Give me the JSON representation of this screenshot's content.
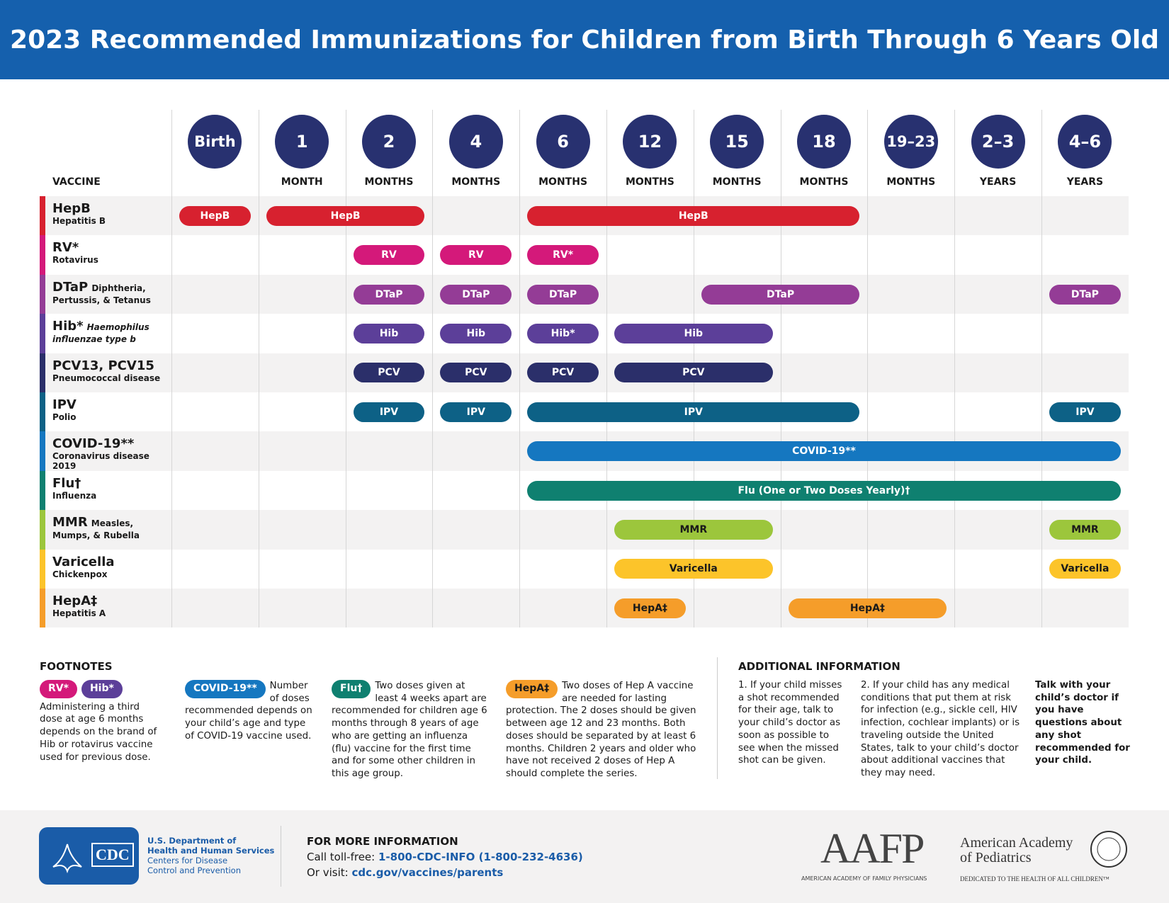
{
  "header": {
    "title": "2023 Recommended Immunizations for Children from Birth Through 6 Years Old"
  },
  "table": {
    "vaccine_heading": "VACCINE",
    "circle_color": "#283170",
    "columns": [
      {
        "age": "Birth"
      },
      {
        "age": "1",
        "unit": "MONTH"
      },
      {
        "age": "2",
        "unit": "MONTHS"
      },
      {
        "age": "4",
        "unit": "MONTHS"
      },
      {
        "age": "6",
        "unit": "MONTHS"
      },
      {
        "age": "12",
        "unit": "MONTHS"
      },
      {
        "age": "15",
        "unit": "MONTHS"
      },
      {
        "age": "18",
        "unit": "MONTHS"
      },
      {
        "age": "19–23",
        "unit": "MONTHS"
      },
      {
        "age": "2–3",
        "unit": "YEARS"
      },
      {
        "age": "4–6",
        "unit": "YEARS"
      }
    ],
    "rows": [
      {
        "name": "HepB",
        "desc": "Hepatitis B",
        "color": "#d7212f",
        "text_color": "#ffffff",
        "doses": [
          {
            "label": "HepB",
            "cols": [
              0,
              0
            ]
          },
          {
            "label": "HepB",
            "cols": [
              1,
              2
            ]
          },
          {
            "label": "HepB",
            "cols": [
              4,
              7
            ]
          }
        ]
      },
      {
        "name": "RV*",
        "desc": "Rotavirus",
        "color": "#d4197a",
        "text_color": "#ffffff",
        "doses": [
          {
            "label": "RV",
            "cols": [
              2,
              2
            ]
          },
          {
            "label": "RV",
            "cols": [
              3,
              3
            ]
          },
          {
            "label": "RV*",
            "cols": [
              4,
              4
            ]
          }
        ]
      },
      {
        "name": "DTaP",
        "note": "Diphtheria,",
        "desc": "Pertussis, & Tetanus",
        "color": "#943c96",
        "text_color": "#ffffff",
        "doses": [
          {
            "label": "DTaP",
            "cols": [
              2,
              2
            ]
          },
          {
            "label": "DTaP",
            "cols": [
              3,
              3
            ]
          },
          {
            "label": "DTaP",
            "cols": [
              4,
              4
            ]
          },
          {
            "label": "DTaP",
            "cols": [
              6,
              7
            ]
          },
          {
            "label": "DTaP",
            "cols": [
              10,
              10
            ]
          }
        ]
      },
      {
        "name": "Hib*",
        "note": "Haemophilus",
        "desc": "influenzae type b",
        "italic": true,
        "color": "#5c3f99",
        "text_color": "#ffffff",
        "doses": [
          {
            "label": "Hib",
            "cols": [
              2,
              2
            ]
          },
          {
            "label": "Hib",
            "cols": [
              3,
              3
            ]
          },
          {
            "label": "Hib*",
            "cols": [
              4,
              4
            ]
          },
          {
            "label": "Hib",
            "cols": [
              5,
              6
            ]
          }
        ]
      },
      {
        "name": "PCV13, PCV15",
        "desc": "Pneumococcal disease",
        "color": "#2b2f6a",
        "text_color": "#ffffff",
        "doses": [
          {
            "label": "PCV",
            "cols": [
              2,
              2
            ]
          },
          {
            "label": "PCV",
            "cols": [
              3,
              3
            ]
          },
          {
            "label": "PCV",
            "cols": [
              4,
              4
            ]
          },
          {
            "label": "PCV",
            "cols": [
              5,
              6
            ]
          }
        ]
      },
      {
        "name": "IPV",
        "desc": "Polio",
        "color": "#0d6186",
        "text_color": "#ffffff",
        "doses": [
          {
            "label": "IPV",
            "cols": [
              2,
              2
            ]
          },
          {
            "label": "IPV",
            "cols": [
              3,
              3
            ]
          },
          {
            "label": "IPV",
            "cols": [
              4,
              7
            ]
          },
          {
            "label": "IPV",
            "cols": [
              10,
              10
            ]
          }
        ]
      },
      {
        "name": "COVID-19**",
        "desc": "Coronavirus disease 2019",
        "color": "#1577c0",
        "text_color": "#ffffff",
        "doses": [
          {
            "label": "COVID-19**",
            "cols": [
              4,
              10
            ]
          }
        ]
      },
      {
        "name": "Flu†",
        "desc": "Influenza",
        "color": "#0f8070",
        "text_color": "#ffffff",
        "doses": [
          {
            "label": "Flu (One or Two Doses Yearly)†",
            "cols": [
              4,
              10
            ]
          }
        ]
      },
      {
        "name": "MMR",
        "note": "Measles,",
        "desc": "Mumps, & Rubella",
        "color": "#9cc63c",
        "text_color": "#1a1a1a",
        "doses": [
          {
            "label": "MMR",
            "cols": [
              5,
              6
            ]
          },
          {
            "label": "MMR",
            "cols": [
              10,
              10
            ]
          }
        ]
      },
      {
        "name": "Varicella",
        "desc": "Chickenpox",
        "color": "#fcc42a",
        "text_color": "#1a1a1a",
        "doses": [
          {
            "label": "Varicella",
            "cols": [
              5,
              6
            ]
          },
          {
            "label": "Varicella",
            "cols": [
              10,
              10
            ]
          }
        ]
      },
      {
        "name": "HepA‡",
        "desc": "Hepatitis A",
        "color": "#f59d2a",
        "text_color": "#1a1a1a",
        "doses": [
          {
            "label": "HepA‡",
            "cols": [
              5,
              5
            ]
          },
          {
            "label": "HepA‡",
            "cols": [
              7,
              8
            ]
          }
        ]
      }
    ]
  },
  "footnotes": {
    "heading": "FOOTNOTES",
    "items": [
      {
        "pills": [
          {
            "label": "RV*",
            "color": "#d4197a",
            "text_color": "#ffffff"
          },
          {
            "label": "Hib*",
            "color": "#5c3f99",
            "text_color": "#ffffff"
          }
        ],
        "text": "Administering a third dose at age 6 months depends on the brand of Hib or rotavirus vaccine used for previous dose."
      },
      {
        "pills": [
          {
            "label": "COVID-19**",
            "color": "#1577c0",
            "text_color": "#ffffff"
          }
        ],
        "text": "Number of doses recommended depends on your child’s age and type of COVID-19 vaccine used."
      },
      {
        "pills": [
          {
            "label": "Flu†",
            "color": "#0f8070",
            "text_color": "#ffffff"
          }
        ],
        "text": "Two doses given at least 4 weeks apart are recommended for children age 6 months through 8 years of age who are getting an influenza (flu) vaccine for the first time and for some other children in this age group."
      },
      {
        "pills": [
          {
            "label": "HepA‡",
            "color": "#f59d2a",
            "text_color": "#1a1a1a"
          }
        ],
        "text": "Two doses of Hep A vaccine are needed for lasting protection. The 2 doses should be given between age 12 and 23 months. Both doses should be separated by at least 6 months. Children 2 years and older who have not received 2 doses of Hep A should complete the series."
      }
    ]
  },
  "additional": {
    "heading": "ADDITIONAL INFORMATION",
    "items": [
      "1. If your child misses a shot recommended for their age, talk to your child’s doctor as soon as possible to see when the missed shot can be given.",
      "2. If your child has any medical conditions that put them at risk for infection (e.g., sickle cell, HIV infection, cochlear implants) or is traveling outside the United States, talk to your child’s doctor about additional vaccines that they may need."
    ],
    "emphasis": "Talk with your child’s doctor if you have questions about any shot recommended for your child."
  },
  "footer": {
    "logo_text": "CDC",
    "hhs_lines": [
      "U.S. Department of",
      "Health and Human Services"
    ],
    "cdc_lines": [
      "Centers for Disease",
      "Control and Prevention"
    ],
    "more_heading": "FOR MORE INFORMATION",
    "call_prefix": "Call toll-free:",
    "phone": "1-800-CDC-INFO (1-800-232-4636)",
    "visit_prefix": "Or visit:",
    "url": "cdc.gov/vaccines/parents",
    "aafp": "AAFP",
    "aafp_full": "AMERICAN ACADEMY OF FAMILY PHYSICIANS",
    "aap_lines": [
      "American Academy",
      "of Pediatrics"
    ],
    "aap_tagline": "DEDICATED TO THE HEALTH OF ALL CHILDREN™"
  }
}
